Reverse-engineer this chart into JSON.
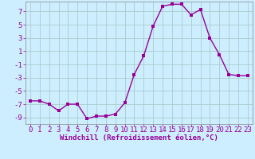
{
  "x": [
    0,
    1,
    2,
    3,
    4,
    5,
    6,
    7,
    8,
    9,
    10,
    11,
    12,
    13,
    14,
    15,
    16,
    17,
    18,
    19,
    20,
    21,
    22,
    23
  ],
  "y": [
    -6.5,
    -6.5,
    -7,
    -8,
    -7,
    -7,
    -9.2,
    -8.8,
    -8.8,
    -8.5,
    -6.8,
    -2.5,
    0.3,
    4.8,
    7.8,
    8.1,
    8.1,
    6.5,
    7.3,
    3.0,
    0.5,
    -2.5,
    -2.7,
    -2.7
  ],
  "line_color": "#990099",
  "marker_color": "#990099",
  "bg_color": "#cceeff",
  "grid_color": "#aacccc",
  "xlabel": "Windchill (Refroidissement éolien,°C)",
  "xlim": [
    -0.5,
    23.5
  ],
  "ylim": [
    -10,
    8.5
  ],
  "yticks": [
    -9,
    -7,
    -5,
    -3,
    -1,
    1,
    3,
    5,
    7
  ],
  "xticks": [
    0,
    1,
    2,
    3,
    4,
    5,
    6,
    7,
    8,
    9,
    10,
    11,
    12,
    13,
    14,
    15,
    16,
    17,
    18,
    19,
    20,
    21,
    22,
    23
  ],
  "xlabel_fontsize": 6.5,
  "tick_fontsize": 6.5,
  "line_width": 1.0,
  "marker_size": 2.5
}
